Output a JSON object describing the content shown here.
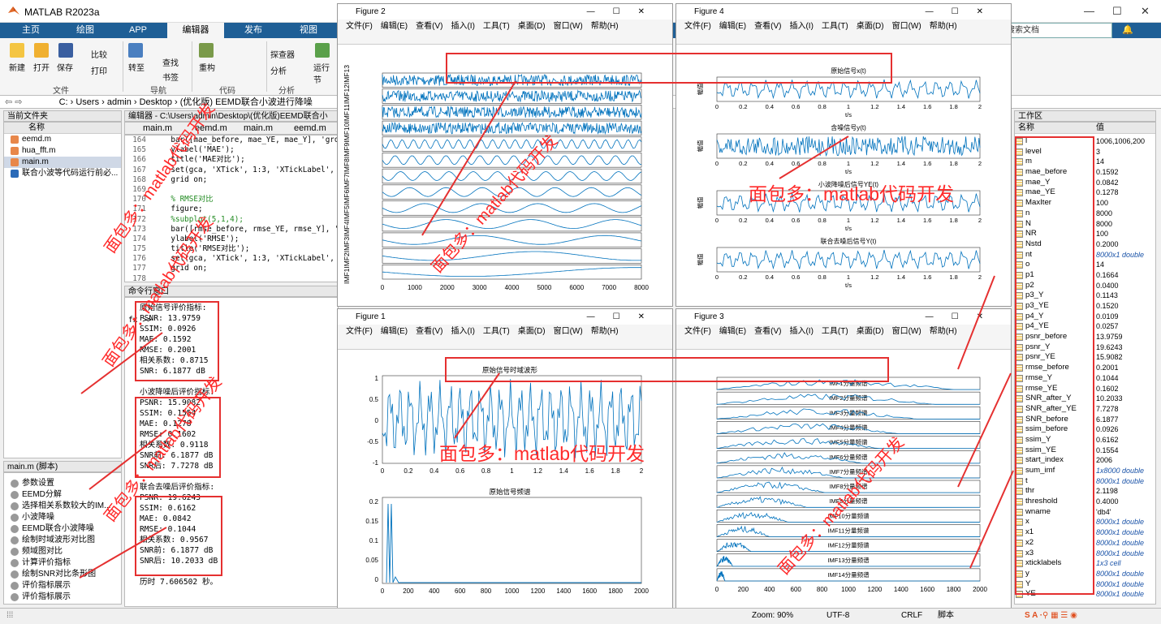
{
  "app": {
    "title": "MATLAB R2023a"
  },
  "tabs": [
    "主页",
    "绘图",
    "APP",
    "编辑器",
    "发布",
    "视图"
  ],
  "search": {
    "placeholder": "搜索文档"
  },
  "ribbon": {
    "file": {
      "new": "新建",
      "open": "打开",
      "save": "保存",
      "compare": "比较",
      "print": "打印",
      "section": "文件"
    },
    "nav": {
      "goto": "转至",
      "find": "查找",
      "bookmark": "书签",
      "section": "导航"
    },
    "code": {
      "refactor": "重构",
      "section": "代码"
    },
    "analyze": {
      "profiler": "探查器",
      "analyze": "分析",
      "section": "分析"
    },
    "run": {
      "run_section": "运行节"
    }
  },
  "path": {
    "segments": [
      "C:",
      "Users",
      "admin",
      "Desktop",
      "(优化版) EEMD联合小波进行降噪"
    ]
  },
  "current_folder": {
    "title": "当前文件夹",
    "col": "名称",
    "files": [
      "eemd.m",
      "hua_fft.m",
      "main.m",
      "联合小波等代码运行前必..."
    ]
  },
  "editor": {
    "title": "编辑器 - C:\\Users\\admin\\Desktop\\(优化版)EEMD联合小",
    "tabs": [
      "main.m",
      "eemd.m",
      "main.m",
      "eemd.m"
    ],
    "lines": [
      {
        "n": "164",
        "code": "    bar([mae_before, mae_YE, mae_Y], 'grouped');"
      },
      {
        "n": "165",
        "code": "    ylabel('MAE');"
      },
      {
        "n": "166",
        "code": "    title('MAE对比');"
      },
      {
        "n": "167",
        "code": "    set(gca, 'XTick', 1:3, 'XTickLabel', xticklabels);"
      },
      {
        "n": "168",
        "code": "    grid on;"
      },
      {
        "n": "169",
        "code": ""
      },
      {
        "n": "170",
        "code": "    % RMSE对比"
      },
      {
        "n": "171",
        "code": "    figure;"
      },
      {
        "n": "172",
        "code": "    %subplot(5,1,4);"
      },
      {
        "n": "173",
        "code": "    bar([rmse_before, rmse_YE, rmse_Y], 'grouped');"
      },
      {
        "n": "174",
        "code": "    ylabel('RMSE');"
      },
      {
        "n": "175",
        "code": "    title('RMSE对比');"
      },
      {
        "n": "176",
        "code": "    set(gca, 'XTick', 1:3, 'XTickLabel', xticklabels);"
      },
      {
        "n": "177",
        "code": "    grid on;"
      },
      {
        "n": "178",
        "code": ""
      }
    ]
  },
  "command_window": {
    "title": "命令行窗口",
    "lines": [
      "原始信号评价指标:",
      "PSNR: 13.9759",
      "SSIM: 0.0926",
      "MAE: 0.1592",
      "RMSE: 0.2001",
      "相关系数: 0.8715",
      "SNR: 6.1877 dB",
      "",
      "小波降噪后评价指标:",
      "PSNR: 15.9082",
      "SSIM: 0.1554",
      "MAE: 0.1278",
      "RMSE: 0.1602",
      "相关系数: 0.9118",
      "SNR前: 6.1877 dB",
      "SNR后: 7.7278 dB",
      "",
      "联合去噪后评价指标:",
      "PSNR: 19.6243",
      "SSIM: 0.6162",
      "MAE: 0.0842",
      "RMSE: 0.1044",
      "相关系数: 0.9567",
      "SNR前: 6.1877 dB",
      "SNR后: 10.2033 dB",
      "",
      "历时 7.606502 秒。"
    ],
    "prompt": "fx >>"
  },
  "script_outline": {
    "title": "main.m (脚本)",
    "items": [
      "参数设置",
      "EEMD分解",
      "选择相关系数较大的IM...",
      "小波降噪",
      "EEMD联合小波降噪",
      "绘制时域波形对比图",
      "频域图对比",
      "计算评价指标",
      "绘制SNR对比条形图",
      "评价指标展示",
      "评价指标展示"
    ]
  },
  "figure_menu": [
    "文件(F)",
    "编辑(E)",
    "查看(V)",
    "插入(I)",
    "工具(T)",
    "桌面(D)",
    "窗口(W)",
    "帮助(H)"
  ],
  "figures": {
    "fig2": {
      "title": "Figure 2",
      "xticks": [
        "0",
        "1000",
        "2000",
        "3000",
        "4000",
        "5000",
        "6000",
        "7000",
        "8000"
      ],
      "ylabel": "IMF1IMF2IMF3IMF4IMF5IMF6IMF7IMF8IMF9IMF10IMF11IMF12IMF13"
    },
    "fig4": {
      "title": "Figure 4",
      "titles": [
        "原始信号x(t)",
        "含噪信号y(t)",
        "小波降噪后信号YE(t)",
        "联合去噪后信号Y(t)"
      ],
      "ylabel": "幅值",
      "xlabel": "t/s",
      "xticks": [
        "0",
        "0.2",
        "0.4",
        "0.6",
        "0.8",
        "1",
        "1.2",
        "1.4",
        "1.6",
        "1.8",
        "2"
      ]
    },
    "fig1": {
      "title": "Figure 1",
      "title1": "原始信号时域波形",
      "title2": "原始信号频谱",
      "xticks1": [
        "0",
        "0.2",
        "0.4",
        "0.6",
        "0.8",
        "1",
        "1.2",
        "1.4",
        "1.6",
        "1.8",
        "2"
      ],
      "yticks1": [
        "1",
        "0.5",
        "0",
        "-0.5",
        "-1"
      ],
      "xticks2": [
        "0",
        "200",
        "400",
        "600",
        "800",
        "1000",
        "1200",
        "1400",
        "1600",
        "1800",
        "2000"
      ],
      "yticks2": [
        "0.2",
        "0.15",
        "0.1",
        "0.05",
        "0"
      ]
    },
    "fig3": {
      "title": "Figure 3",
      "titles": [
        "IMF1分量频谱",
        "IMF2分量频谱",
        "IMF3分量频谱",
        "IMF4分量频谱",
        "IMF5分量频谱",
        "IMF6分量频谱",
        "IMF7分量频谱",
        "IMF8分量频谱",
        "IMF9分量频谱",
        "IMF10分量频谱",
        "IMF11分量频谱",
        "IMF12分量频谱",
        "IMF13分量频谱",
        "IMF14分量频谱"
      ],
      "xticks": [
        "0",
        "200",
        "400",
        "600",
        "800",
        "1000",
        "1200",
        "1400",
        "1600",
        "1800",
        "2000"
      ]
    }
  },
  "workspace": {
    "title": "工作区",
    "col_name": "名称",
    "col_value": "值",
    "vars": [
      {
        "n": "l",
        "v": "1006,1006,200"
      },
      {
        "n": "level",
        "v": "3"
      },
      {
        "n": "m",
        "v": "14"
      },
      {
        "n": "mae_before",
        "v": "0.1592"
      },
      {
        "n": "mae_Y",
        "v": "0.0842"
      },
      {
        "n": "mae_YE",
        "v": "0.1278"
      },
      {
        "n": "MaxIter",
        "v": "100"
      },
      {
        "n": "n",
        "v": "8000"
      },
      {
        "n": "N",
        "v": "8000"
      },
      {
        "n": "NR",
        "v": "100"
      },
      {
        "n": "Nstd",
        "v": "0.2000"
      },
      {
        "n": "nt",
        "v": "8000x1 double",
        "it": true
      },
      {
        "n": "o",
        "v": "14"
      },
      {
        "n": "p1",
        "v": "0.1664"
      },
      {
        "n": "p2",
        "v": "0.0400"
      },
      {
        "n": "p3_Y",
        "v": "0.1143"
      },
      {
        "n": "p3_YE",
        "v": "0.1520"
      },
      {
        "n": "p4_Y",
        "v": "0.0109"
      },
      {
        "n": "p4_YE",
        "v": "0.0257"
      },
      {
        "n": "psnr_before",
        "v": "13.9759"
      },
      {
        "n": "psnr_Y",
        "v": "19.6243"
      },
      {
        "n": "psnr_YE",
        "v": "15.9082"
      },
      {
        "n": "rmse_before",
        "v": "0.2001"
      },
      {
        "n": "rmse_Y",
        "v": "0.1044"
      },
      {
        "n": "rmse_YE",
        "v": "0.1602"
      },
      {
        "n": "SNR_after_Y",
        "v": "10.2033"
      },
      {
        "n": "SNR_after_YE",
        "v": "7.7278"
      },
      {
        "n": "SNR_before",
        "v": "6.1877"
      },
      {
        "n": "ssim_before",
        "v": "0.0926"
      },
      {
        "n": "ssim_Y",
        "v": "0.6162"
      },
      {
        "n": "ssim_YE",
        "v": "0.1554"
      },
      {
        "n": "start_index",
        "v": "2006"
      },
      {
        "n": "sum_imf",
        "v": "1x8000 double",
        "it": true
      },
      {
        "n": "t",
        "v": "8000x1 double",
        "it": true
      },
      {
        "n": "thr",
        "v": "2.1198"
      },
      {
        "n": "threshold",
        "v": "0.4000"
      },
      {
        "n": "wname",
        "v": "'db4'"
      },
      {
        "n": "x",
        "v": "8000x1 double",
        "it": true
      },
      {
        "n": "x1",
        "v": "8000x1 double",
        "it": true
      },
      {
        "n": "x2",
        "v": "8000x1 double",
        "it": true
      },
      {
        "n": "x3",
        "v": "8000x1 double",
        "it": true
      },
      {
        "n": "xticklabels",
        "v": "1x3 cell",
        "it": true
      },
      {
        "n": "y",
        "v": "8000x1 double",
        "it": true
      },
      {
        "n": "Y",
        "v": "8000x1 double",
        "it": true
      },
      {
        "n": "YE",
        "v": "8000x1 double",
        "it": true
      }
    ]
  },
  "status": {
    "zoom": "Zoom: 90%",
    "encoding": "UTF-8",
    "eol": "CRLF",
    "mode": "脚本"
  },
  "watermark": "面包多：matlab代码开发",
  "colors": {
    "accent": "#1f5f96",
    "plot": "#0072bd",
    "annotation": "#e53030"
  }
}
